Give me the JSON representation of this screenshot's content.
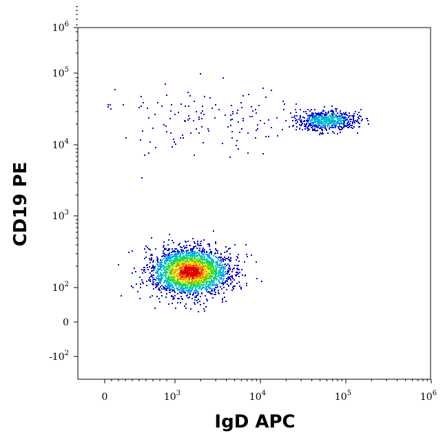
{
  "chart_data": {
    "type": "scatter",
    "title": "",
    "xlabel": "IgD APC",
    "ylabel": "CD19 PE",
    "x_scale": "biexponential",
    "y_scale": "biexponential",
    "xlim": [
      -300,
      1000000
    ],
    "ylim": [
      -400,
      1000000
    ],
    "x_ticks": [
      {
        "base": "0",
        "exp": ""
      },
      {
        "base": "10",
        "exp": "3"
      },
      {
        "base": "10",
        "exp": "4"
      },
      {
        "base": "10",
        "exp": "5"
      },
      {
        "base": "10",
        "exp": "6"
      }
    ],
    "y_ticks": [
      {
        "base": "-10",
        "exp": "2"
      },
      {
        "base": "0",
        "exp": ""
      },
      {
        "base": "10",
        "exp": "2"
      },
      {
        "base": "10",
        "exp": "3"
      },
      {
        "base": "10",
        "exp": "4"
      },
      {
        "base": "10",
        "exp": "5"
      },
      {
        "base": "10",
        "exp": "6"
      }
    ],
    "grid": false,
    "coloring": "density (blue → cyan → green → yellow → red)",
    "colors": [
      "#0000cc",
      "#00a0ff",
      "#00d0a0",
      "#40e000",
      "#f0e000",
      "#ff7000",
      "#e00000"
    ],
    "populations": [
      {
        "center_x": 1500,
        "center_y": 170,
        "spread_x": 0.28,
        "spread_y": 0.1,
        "count": 2600,
        "density": "high"
      },
      {
        "center_x": 60000,
        "center_y": 23000,
        "spread_x": 0.22,
        "spread_y": 0.07,
        "count": 650,
        "density": "medium"
      },
      {
        "center_x": 2500,
        "center_y": 25000,
        "spread_x": 0.55,
        "spread_y": 0.18,
        "count": 140,
        "density": "low"
      }
    ]
  }
}
